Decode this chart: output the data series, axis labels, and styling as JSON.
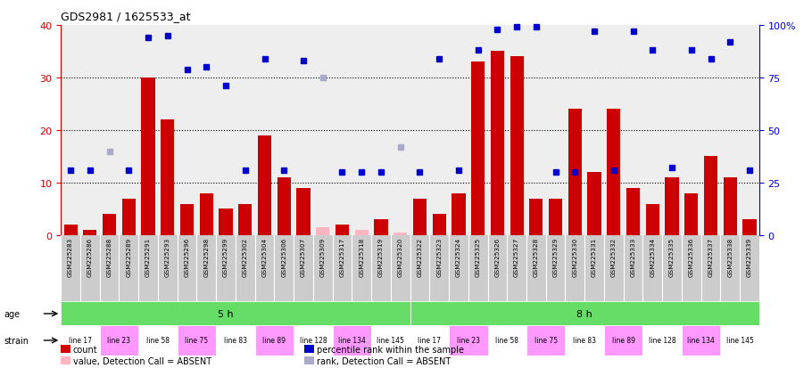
{
  "title": "GDS2981 / 1625533_at",
  "samples": [
    "GSM225283",
    "GSM225286",
    "GSM225288",
    "GSM225289",
    "GSM225291",
    "GSM225293",
    "GSM225296",
    "GSM225298",
    "GSM225299",
    "GSM225302",
    "GSM225304",
    "GSM225306",
    "GSM225307",
    "GSM225309",
    "GSM225317",
    "GSM225318",
    "GSM225319",
    "GSM225320",
    "GSM225322",
    "GSM225323",
    "GSM225324",
    "GSM225325",
    "GSM225326",
    "GSM225327",
    "GSM225328",
    "GSM225329",
    "GSM225330",
    "GSM225331",
    "GSM225332",
    "GSM225333",
    "GSM225334",
    "GSM225335",
    "GSM225336",
    "GSM225337",
    "GSM225338",
    "GSM225339"
  ],
  "counts": [
    2,
    1,
    4,
    7,
    30,
    22,
    6,
    8,
    5,
    6,
    19,
    11,
    9,
    1.5,
    2,
    1,
    3,
    0.5,
    7,
    4,
    8,
    33,
    35,
    34,
    7,
    7,
    24,
    12,
    24,
    9,
    6,
    11,
    8,
    15,
    11,
    3
  ],
  "absent_count_indices": [
    13,
    15,
    17
  ],
  "ranks": [
    31,
    31,
    31,
    31,
    94,
    95,
    79,
    80,
    71,
    31,
    84,
    31,
    83,
    29,
    30,
    30,
    30,
    31,
    30,
    84,
    31,
    88,
    98,
    99,
    99,
    30,
    30,
    97,
    31,
    97,
    88,
    32,
    88,
    84,
    92,
    31
  ],
  "absent_rank_indices": [
    2,
    13,
    17
  ],
  "rank_absent_values": [
    40,
    75,
    42
  ],
  "bar_color_present": "#CC0000",
  "bar_color_absent": "#FFB6C1",
  "dot_color_present": "#0000CC",
  "dot_color_absent": "#AAAACC",
  "ylim_left": [
    0,
    40
  ],
  "ylim_right": [
    0,
    100
  ],
  "yticks_left": [
    0,
    10,
    20,
    30,
    40
  ],
  "yticks_right": [
    0,
    25,
    50,
    75,
    100
  ],
  "background_color": "#FFFFFF",
  "plot_bg_color": "#EEEEEE",
  "strain_labels": [
    "line 17",
    "line 23",
    "line 58",
    "line 75",
    "line 83",
    "line 89",
    "line 128",
    "line 134",
    "line 145"
  ],
  "strain_colors": [
    "white",
    "#FF99FF",
    "white",
    "#FF99FF",
    "white",
    "#FF99FF",
    "white",
    "#FF99FF",
    "white"
  ],
  "age_color": "#66DD66"
}
